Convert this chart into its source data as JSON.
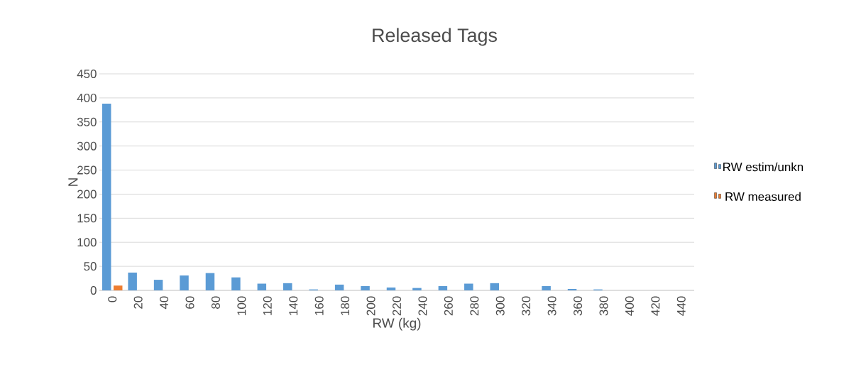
{
  "chart_data": {
    "type": "bar",
    "title": "Released Tags",
    "xlabel": "RW (kg)",
    "ylabel": "N",
    "categories": [
      "0",
      "20",
      "40",
      "60",
      "80",
      "100",
      "120",
      "140",
      "160",
      "180",
      "200",
      "220",
      "240",
      "260",
      "280",
      "300",
      "320",
      "340",
      "360",
      "380",
      "400",
      "420",
      "440"
    ],
    "series": [
      {
        "name": "RW estim/unkn",
        "color": "#5b9bd5",
        "values": [
          388,
          37,
          22,
          31,
          36,
          27,
          14,
          15,
          2,
          12,
          9,
          6,
          5,
          9,
          14,
          15,
          0,
          9,
          3,
          2,
          0,
          0,
          0
        ]
      },
      {
        "name": "RW measured",
        "color": "#ed7d31",
        "values": [
          10,
          0,
          0,
          0,
          0,
          0,
          0,
          0,
          0,
          0,
          0,
          0,
          0,
          0,
          0,
          0,
          0,
          0,
          0,
          0,
          0,
          0,
          0
        ]
      }
    ],
    "ylim": [
      0,
      450
    ],
    "yticks": [
      0,
      50,
      100,
      150,
      200,
      250,
      300,
      350,
      400,
      450
    ],
    "grid": "y",
    "legend": "right"
  }
}
